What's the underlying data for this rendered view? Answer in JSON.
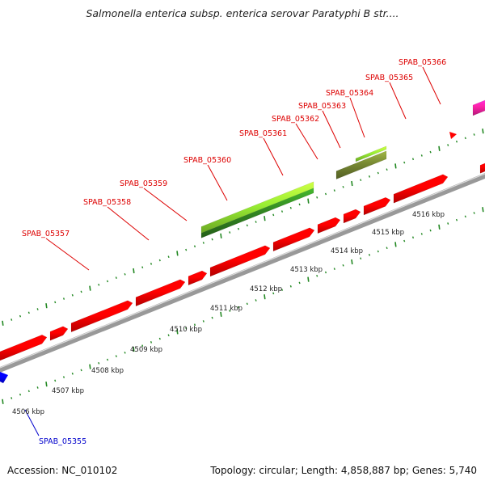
{
  "title": "Salmonella enterica subsp. enterica serovar Paratyphi B str....",
  "footer": {
    "accession": "Accession: NC_010102",
    "summary": "Topology: circular; Length: 4,858,887 bp; Genes: 5,740"
  },
  "colors": {
    "forward_gene": "#ff0000",
    "reverse_gene": "#0000ff",
    "gc_light": "#99ee33",
    "gc_dark": "#338822",
    "olive_feature": "#778833",
    "magenta_feature": "#ff22aa",
    "backbone": "#999999",
    "tick": "#228822",
    "forward_label": "#dd0000",
    "reverse_label": "#0000cc"
  },
  "scale_labels": [
    "4506 kbp",
    "4507 kbp",
    "4508 kbp",
    "4509 kbp",
    "4510 kbp",
    "4511 kbp",
    "4512 kbp",
    "4513 kbp",
    "4514 kbp",
    "4515 kbp",
    "4516 kbp"
  ],
  "gene_labels": [
    "SPAB_05355",
    "SPAB_05357",
    "SPAB_05358",
    "SPAB_05359",
    "SPAB_05360",
    "SPAB_05361",
    "SPAB_05362",
    "SPAB_05363",
    "SPAB_05364",
    "SPAB_05365",
    "SPAB_05366"
  ]
}
